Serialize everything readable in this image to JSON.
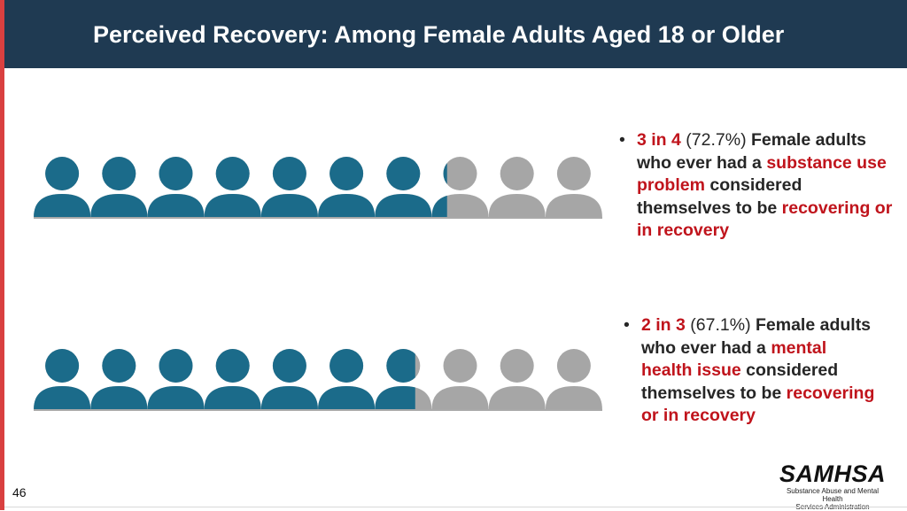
{
  "slide": {
    "title": "Perceived Recovery: Among Female Adults Aged 18 or Older",
    "slide_number": "46"
  },
  "colors": {
    "header_bg": "#1f3a52",
    "accent_red": "#c0141c",
    "left_bar": "#d94040",
    "icon_filled": "#1b6b8a",
    "icon_empty": "#a6a6a6"
  },
  "pictographs": [
    {
      "icon_count": 10,
      "filled_fraction": 0.727,
      "bullet": {
        "ratio": "3 in 4",
        "percent": "(72.7%)",
        "text_a": "Female adults who ever had a",
        "highlight_a": "substance use problem",
        "text_b": "considered themselves to be",
        "highlight_b": "recovering or in recovery"
      }
    },
    {
      "icon_count": 10,
      "filled_fraction": 0.671,
      "bullet": {
        "ratio": "2 in 3",
        "percent": "(67.1%)",
        "text_a": "Female adults who ever had a",
        "highlight_a": "mental health issue",
        "text_b": "considered themselves to be",
        "highlight_b": "recovering or in recovery"
      }
    }
  ],
  "logo": {
    "name": "SAMHSA",
    "tagline_line1": "Substance Abuse and Mental Health",
    "tagline_line2": "Services Administration"
  }
}
